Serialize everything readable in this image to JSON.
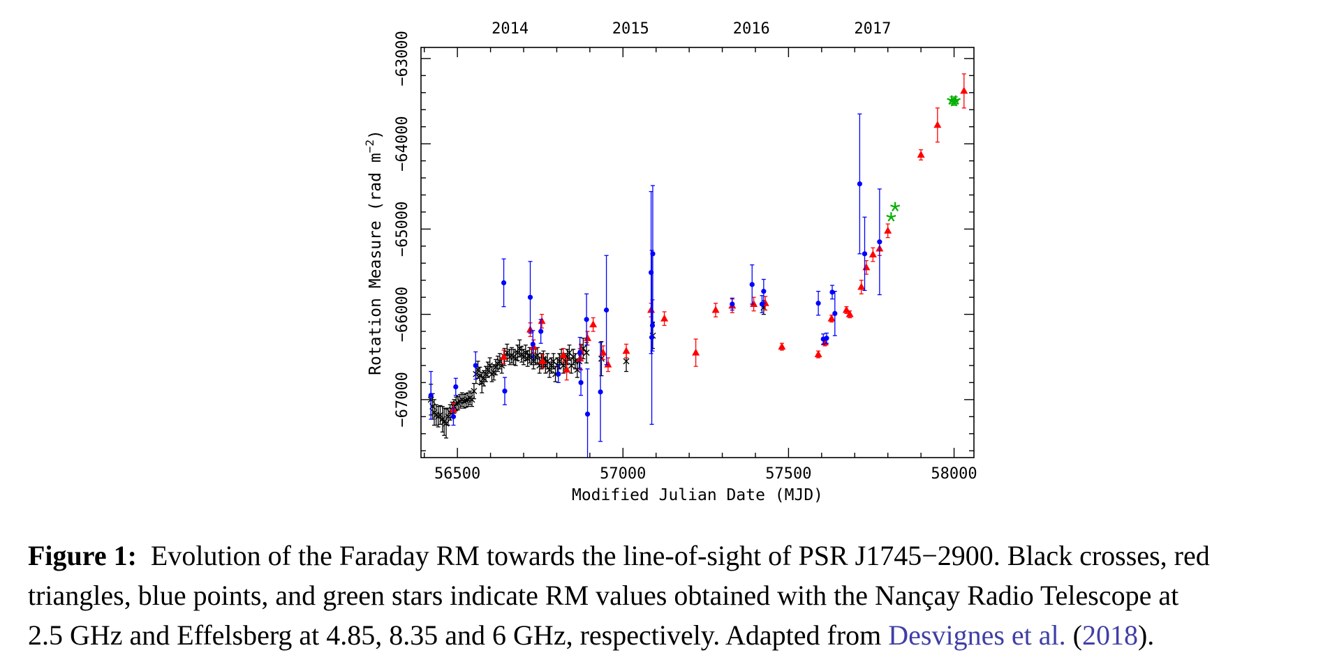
{
  "chart_data": {
    "type": "scatter",
    "xlabel": "Modified Julian Date (MJD)",
    "ylabel": "Rotation Measure (rad m",
    "ylabel_sup": "−2",
    "ylabel_close": ")",
    "xlim": [
      56390,
      58060
    ],
    "ylim": [
      -67680,
      -62870
    ],
    "x_ticks": [
      56500,
      57000,
      57500,
      58000
    ],
    "x_tick_labels": [
      "56500",
      "57000",
      "57500",
      "58000"
    ],
    "y_ticks": [
      -67000,
      -66000,
      -65000,
      -64000,
      -63000
    ],
    "y_tick_labels": [
      "−67000",
      "−66000",
      "−65000",
      "−64000",
      "−63000"
    ],
    "top_axis_ticks": [
      56659,
      57023,
      57388,
      57754
    ],
    "top_axis_labels": [
      "2014",
      "2015",
      "2016",
      "2017"
    ],
    "series": [
      {
        "marker": "cross",
        "color": "#000000",
        "x": [
          56420,
          56425,
          56430,
          56436,
          56442,
          56448,
          56455,
          56460,
          56466,
          56472,
          56478,
          56484,
          56490,
          56496,
          56502,
          56508,
          56514,
          56520,
          56526,
          56532,
          56538,
          56544,
          56550,
          56556,
          56562,
          56568,
          56574,
          56580,
          56586,
          56592,
          56598,
          56604,
          56610,
          56616,
          56622,
          56628,
          56634,
          56642,
          56650,
          56658,
          56664,
          56670,
          56676,
          56682,
          56688,
          56694,
          56700,
          56706,
          56712,
          56718,
          56724,
          56730,
          56736,
          56742,
          56748,
          56754,
          56760,
          56766,
          56772,
          56778,
          56784,
          56790,
          56796,
          56802,
          56808,
          56814,
          56820,
          56826,
          56832,
          56838,
          56844,
          56850,
          56856,
          56862,
          56868,
          56874,
          56880,
          56890,
          56935,
          57010,
          57090,
          57425
        ],
        "y": [
          -67000,
          -67080,
          -67150,
          -67180,
          -67200,
          -67180,
          -67230,
          -67260,
          -67280,
          -67200,
          -67150,
          -67120,
          -67080,
          -67050,
          -67040,
          -67020,
          -67000,
          -67020,
          -67010,
          -67000,
          -66980,
          -67000,
          -66900,
          -66700,
          -66650,
          -66720,
          -66800,
          -66750,
          -66700,
          -66650,
          -66600,
          -66700,
          -66680,
          -66620,
          -66580,
          -66550,
          -66600,
          -66500,
          -66450,
          -66500,
          -66480,
          -66500,
          -66520,
          -66450,
          -66400,
          -66470,
          -66500,
          -66450,
          -66520,
          -66480,
          -66500,
          -66550,
          -66500,
          -66480,
          -66600,
          -66550,
          -66520,
          -66600,
          -66550,
          -66650,
          -66600,
          -66550,
          -66700,
          -66600,
          -66550,
          -66500,
          -66600,
          -66550,
          -66500,
          -66450,
          -66600,
          -66500,
          -66550,
          -66650,
          -66550,
          -66450,
          -66400,
          -66450,
          -66520,
          -66550,
          -66250,
          -65920
        ],
        "err": [
          180,
          150,
          150,
          120,
          120,
          110,
          150,
          160,
          170,
          100,
          90,
          90,
          80,
          80,
          80,
          80,
          80,
          80,
          80,
          80,
          80,
          80,
          90,
          110,
          100,
          100,
          120,
          90,
          90,
          90,
          90,
          90,
          90,
          90,
          90,
          90,
          90,
          100,
          100,
          90,
          90,
          90,
          80,
          90,
          100,
          90,
          90,
          90,
          90,
          90,
          90,
          90,
          90,
          90,
          90,
          90,
          90,
          90,
          90,
          90,
          90,
          90,
          90,
          90,
          90,
          90,
          90,
          90,
          90,
          90,
          90,
          90,
          90,
          90,
          90,
          90,
          120,
          120,
          200,
          120,
          150,
          80
        ]
      },
      {
        "marker": "triangle",
        "color": "#ff0000",
        "x": [
          56488,
          56640,
          56720,
          56730,
          56755,
          56757,
          56820,
          56830,
          56870,
          56873,
          56893,
          56910,
          56940,
          56955,
          57010,
          57085,
          57125,
          57220,
          57280,
          57330,
          57395,
          57430,
          57480,
          57590,
          57610,
          57630,
          57675,
          57685,
          57720,
          57735,
          57755,
          57775,
          57800,
          57900,
          57950,
          58030
        ],
        "y": [
          -67120,
          -66500,
          -66180,
          -66380,
          -66080,
          -66550,
          -66480,
          -66650,
          -66520,
          -66430,
          -66280,
          -66120,
          -66450,
          -66590,
          -66430,
          -65950,
          -66050,
          -66450,
          -65950,
          -65900,
          -65880,
          -65870,
          -66380,
          -66470,
          -66330,
          -66050,
          -65950,
          -66000,
          -65680,
          -65450,
          -65300,
          -65230,
          -65020,
          -64130,
          -63780,
          -63380
        ],
        "err": [
          80,
          80,
          80,
          80,
          80,
          80,
          80,
          120,
          120,
          80,
          80,
          80,
          80,
          80,
          80,
          80,
          80,
          160,
          80,
          80,
          80,
          80,
          40,
          40,
          40,
          40,
          40,
          40,
          80,
          80,
          80,
          80,
          80,
          60,
          200,
          200
        ]
      },
      {
        "marker": "dot",
        "color": "#0000ff",
        "x": [
          56420,
          56488,
          56495,
          56555,
          56640,
          56643,
          56720,
          56728,
          56752,
          56805,
          56870,
          56873,
          56890,
          56893,
          56932,
          56950,
          57085,
          57087,
          57089,
          57090,
          57330,
          57390,
          57420,
          57425,
          57590,
          57605,
          57615,
          57632,
          57640,
          57715,
          57730,
          57775
        ],
        "y": [
          -66950,
          -67200,
          -66850,
          -66600,
          -65630,
          -66900,
          -65800,
          -66350,
          -66200,
          -66700,
          -66450,
          -66800,
          -66060,
          -67170,
          -66910,
          -65950,
          -65510,
          -66270,
          -66130,
          -65290,
          -65880,
          -65650,
          -65880,
          -65730,
          -65870,
          -66290,
          -66280,
          -65740,
          -65990,
          -64470,
          -65290,
          -65150
        ],
        "err": [
          280,
          100,
          100,
          160,
          280,
          160,
          420,
          160,
          140,
          100,
          180,
          150,
          300,
          530,
          580,
          640,
          950,
          1020,
          300,
          800,
          70,
          230,
          100,
          140,
          140,
          60,
          60,
          80,
          260,
          820,
          430,
          620
        ]
      },
      {
        "marker": "star",
        "color": "#00b000",
        "x": [
          57810,
          57822,
          57993,
          58000,
          58005
        ],
        "y": [
          -64860,
          -64740,
          -63490,
          -63510,
          -63490
        ],
        "err": [
          0,
          0,
          40,
          40,
          40
        ]
      }
    ]
  },
  "caption": {
    "label": "Figure 1:",
    "line1": "Evolution of the Faraday RM towards the line-of-sight of PSR J1745−2900. Black crosses, red",
    "line2": "triangles, blue points, and green stars indicate RM values obtained with the Nançay Radio Telescope at",
    "line3_a": "2.5 GHz and Effelsberg at 4.85, 8.35 and 6 GHz, respectively. Adapted from ",
    "citation_author": "Desvignes et al.",
    "line3_b": " (",
    "citation_year": "2018",
    "line3_c": ")."
  }
}
